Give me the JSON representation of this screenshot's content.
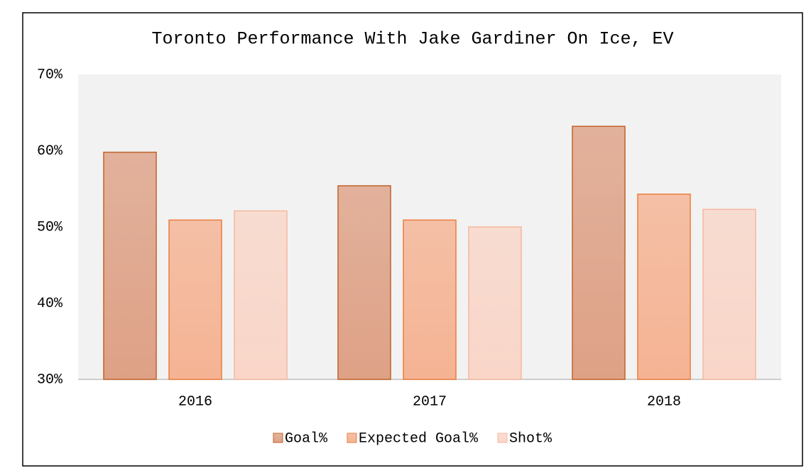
{
  "chart_data": {
    "type": "bar",
    "title": "Toronto Performance With Jake Gardiner On Ice, EV",
    "categories": [
      "2016",
      "2017",
      "2018"
    ],
    "series": [
      {
        "name": "Goal%",
        "color": "#dea186",
        "border_color": "#c0632a",
        "values": [
          59.8,
          55.4,
          63.2
        ]
      },
      {
        "name": "Expected Goal%",
        "color": "#f5b393",
        "border_color": "#ec7d3b",
        "values": [
          50.9,
          50.9,
          54.3
        ]
      },
      {
        "name": "Shot%",
        "color": "#f9d6c8",
        "border_color": "#f4b8a0",
        "values": [
          52.1,
          50.0,
          52.3
        ]
      }
    ],
    "ylim": [
      30,
      70
    ],
    "yticks": [
      {
        "value": 30,
        "label": "30%"
      },
      {
        "value": 40,
        "label": "40%"
      },
      {
        "value": 50,
        "label": "50%"
      },
      {
        "value": 60,
        "label": "60%"
      },
      {
        "value": 70,
        "label": "70%"
      }
    ],
    "grid": false,
    "legend": "bottom"
  }
}
